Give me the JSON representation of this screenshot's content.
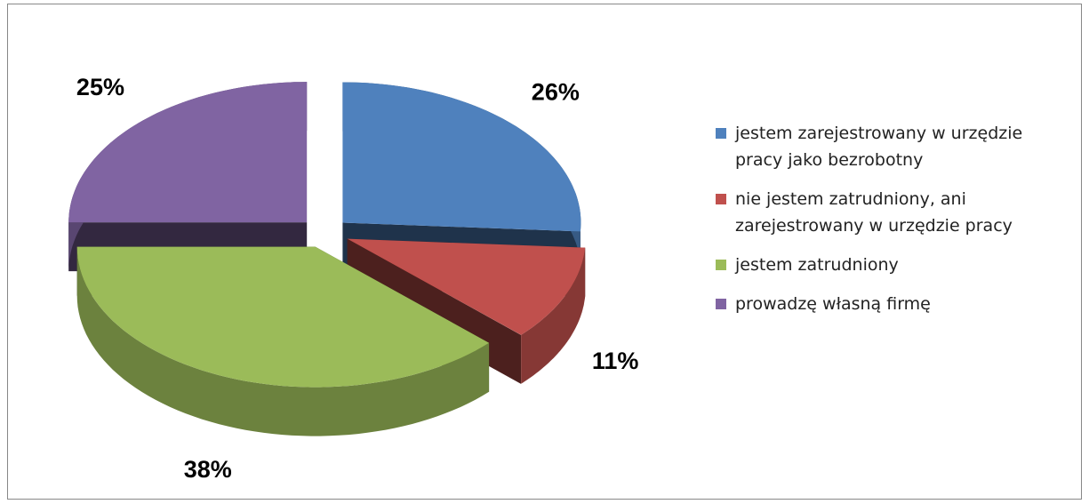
{
  "chart_data": {
    "type": "pie",
    "categories": [
      "jestem zarejestrowany w urzędzie pracy jako bezrobotny",
      "nie jestem zatrudniony, ani zarejestrowany w urzędzie pracy",
      "jestem zatrudniony",
      "prowadzę własną firmę"
    ],
    "values": [
      26,
      11,
      38,
      25
    ],
    "value_labels": [
      "26%",
      "11%",
      "38%",
      "25%"
    ],
    "colors": [
      "#4f81bd",
      "#c0504d",
      "#9bbb59",
      "#8064a2"
    ],
    "legend": "right"
  }
}
